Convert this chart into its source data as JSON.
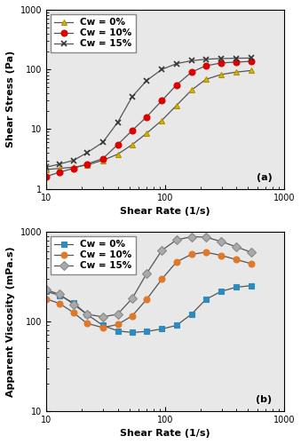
{
  "panel_a": {
    "title": "(a)",
    "xlabel": "Shear Rate (1/s)",
    "ylabel": "Shear Stress (Pa)",
    "xlim": [
      10,
      1000
    ],
    "ylim": [
      1,
      1000
    ],
    "series": [
      {
        "label": "Cw = 0%",
        "marker": "^",
        "marker_facecolor": "#d4b800",
        "marker_edgecolor": "#b09000",
        "line_color": "#555555",
        "x": [
          10,
          13,
          17,
          22,
          30,
          40,
          53,
          70,
          94,
          125,
          167,
          220,
          295,
          395,
          530
        ],
        "y": [
          2.1,
          2.2,
          2.3,
          2.5,
          3.0,
          3.8,
          5.5,
          8.5,
          14,
          25,
          45,
          68,
          82,
          90,
          96
        ]
      },
      {
        "label": "Cw = 10%",
        "marker": "o",
        "marker_facecolor": "#dd0000",
        "marker_edgecolor": "#dd0000",
        "line_color": "#555555",
        "x": [
          10,
          13,
          17,
          22,
          30,
          40,
          53,
          70,
          94,
          125,
          167,
          220,
          295,
          395,
          530
        ],
        "y": [
          1.6,
          1.9,
          2.2,
          2.6,
          3.2,
          5.5,
          9.5,
          16,
          30,
          55,
          90,
          115,
          128,
          133,
          136
        ]
      },
      {
        "label": "Cw = 15%",
        "marker": "x",
        "marker_facecolor": "#333333",
        "marker_edgecolor": "#333333",
        "line_color": "#555555",
        "x": [
          10,
          13,
          17,
          22,
          30,
          40,
          53,
          70,
          94,
          125,
          167,
          220,
          295,
          395,
          530
        ],
        "y": [
          2.3,
          2.6,
          3.0,
          4.0,
          6.0,
          13,
          35,
          65,
          100,
          125,
          140,
          148,
          152,
          154,
          155
        ]
      }
    ]
  },
  "panel_b": {
    "title": "(b)",
    "xlabel": "Shear Rate (1/s)",
    "ylabel": "Apparent Viscosity (mPa.s)",
    "xlim": [
      10,
      1000
    ],
    "ylim": [
      10,
      1000
    ],
    "series": [
      {
        "label": "Cw = 0%",
        "marker": "s",
        "marker_facecolor": "#2e8bc0",
        "marker_edgecolor": "#2e8bc0",
        "line_color": "#555555",
        "x": [
          10,
          13,
          17,
          22,
          30,
          40,
          53,
          70,
          94,
          125,
          167,
          220,
          295,
          395,
          530
        ],
        "y": [
          215,
          195,
          160,
          120,
          90,
          78,
          75,
          77,
          82,
          90,
          120,
          175,
          215,
          240,
          250
        ]
      },
      {
        "label": "Cw = 10%",
        "marker": "o",
        "marker_facecolor": "#e07828",
        "marker_edgecolor": "#e07828",
        "line_color": "#555555",
        "x": [
          10,
          13,
          17,
          22,
          30,
          40,
          53,
          70,
          94,
          125,
          167,
          220,
          295,
          395,
          530
        ],
        "y": [
          178,
          158,
          125,
          95,
          85,
          92,
          115,
          175,
          295,
          460,
          560,
          590,
          545,
          490,
          440
        ]
      },
      {
        "label": "Cw = 15%",
        "marker": "D",
        "marker_facecolor": "#aaaaaa",
        "marker_edgecolor": "#888888",
        "line_color": "#555555",
        "x": [
          10,
          13,
          17,
          22,
          30,
          40,
          53,
          70,
          94,
          125,
          167,
          220,
          295,
          395,
          530
        ],
        "y": [
          225,
          200,
          155,
          120,
          112,
          120,
          180,
          340,
          620,
          810,
          880,
          870,
          780,
          680,
          590
        ]
      }
    ]
  },
  "figure_bg": "#ffffff",
  "axes_bg": "#e8e8e8",
  "fontsize": 8,
  "legend_fontsize": 7.5,
  "marker_size_a": 5,
  "marker_size_b": 5
}
